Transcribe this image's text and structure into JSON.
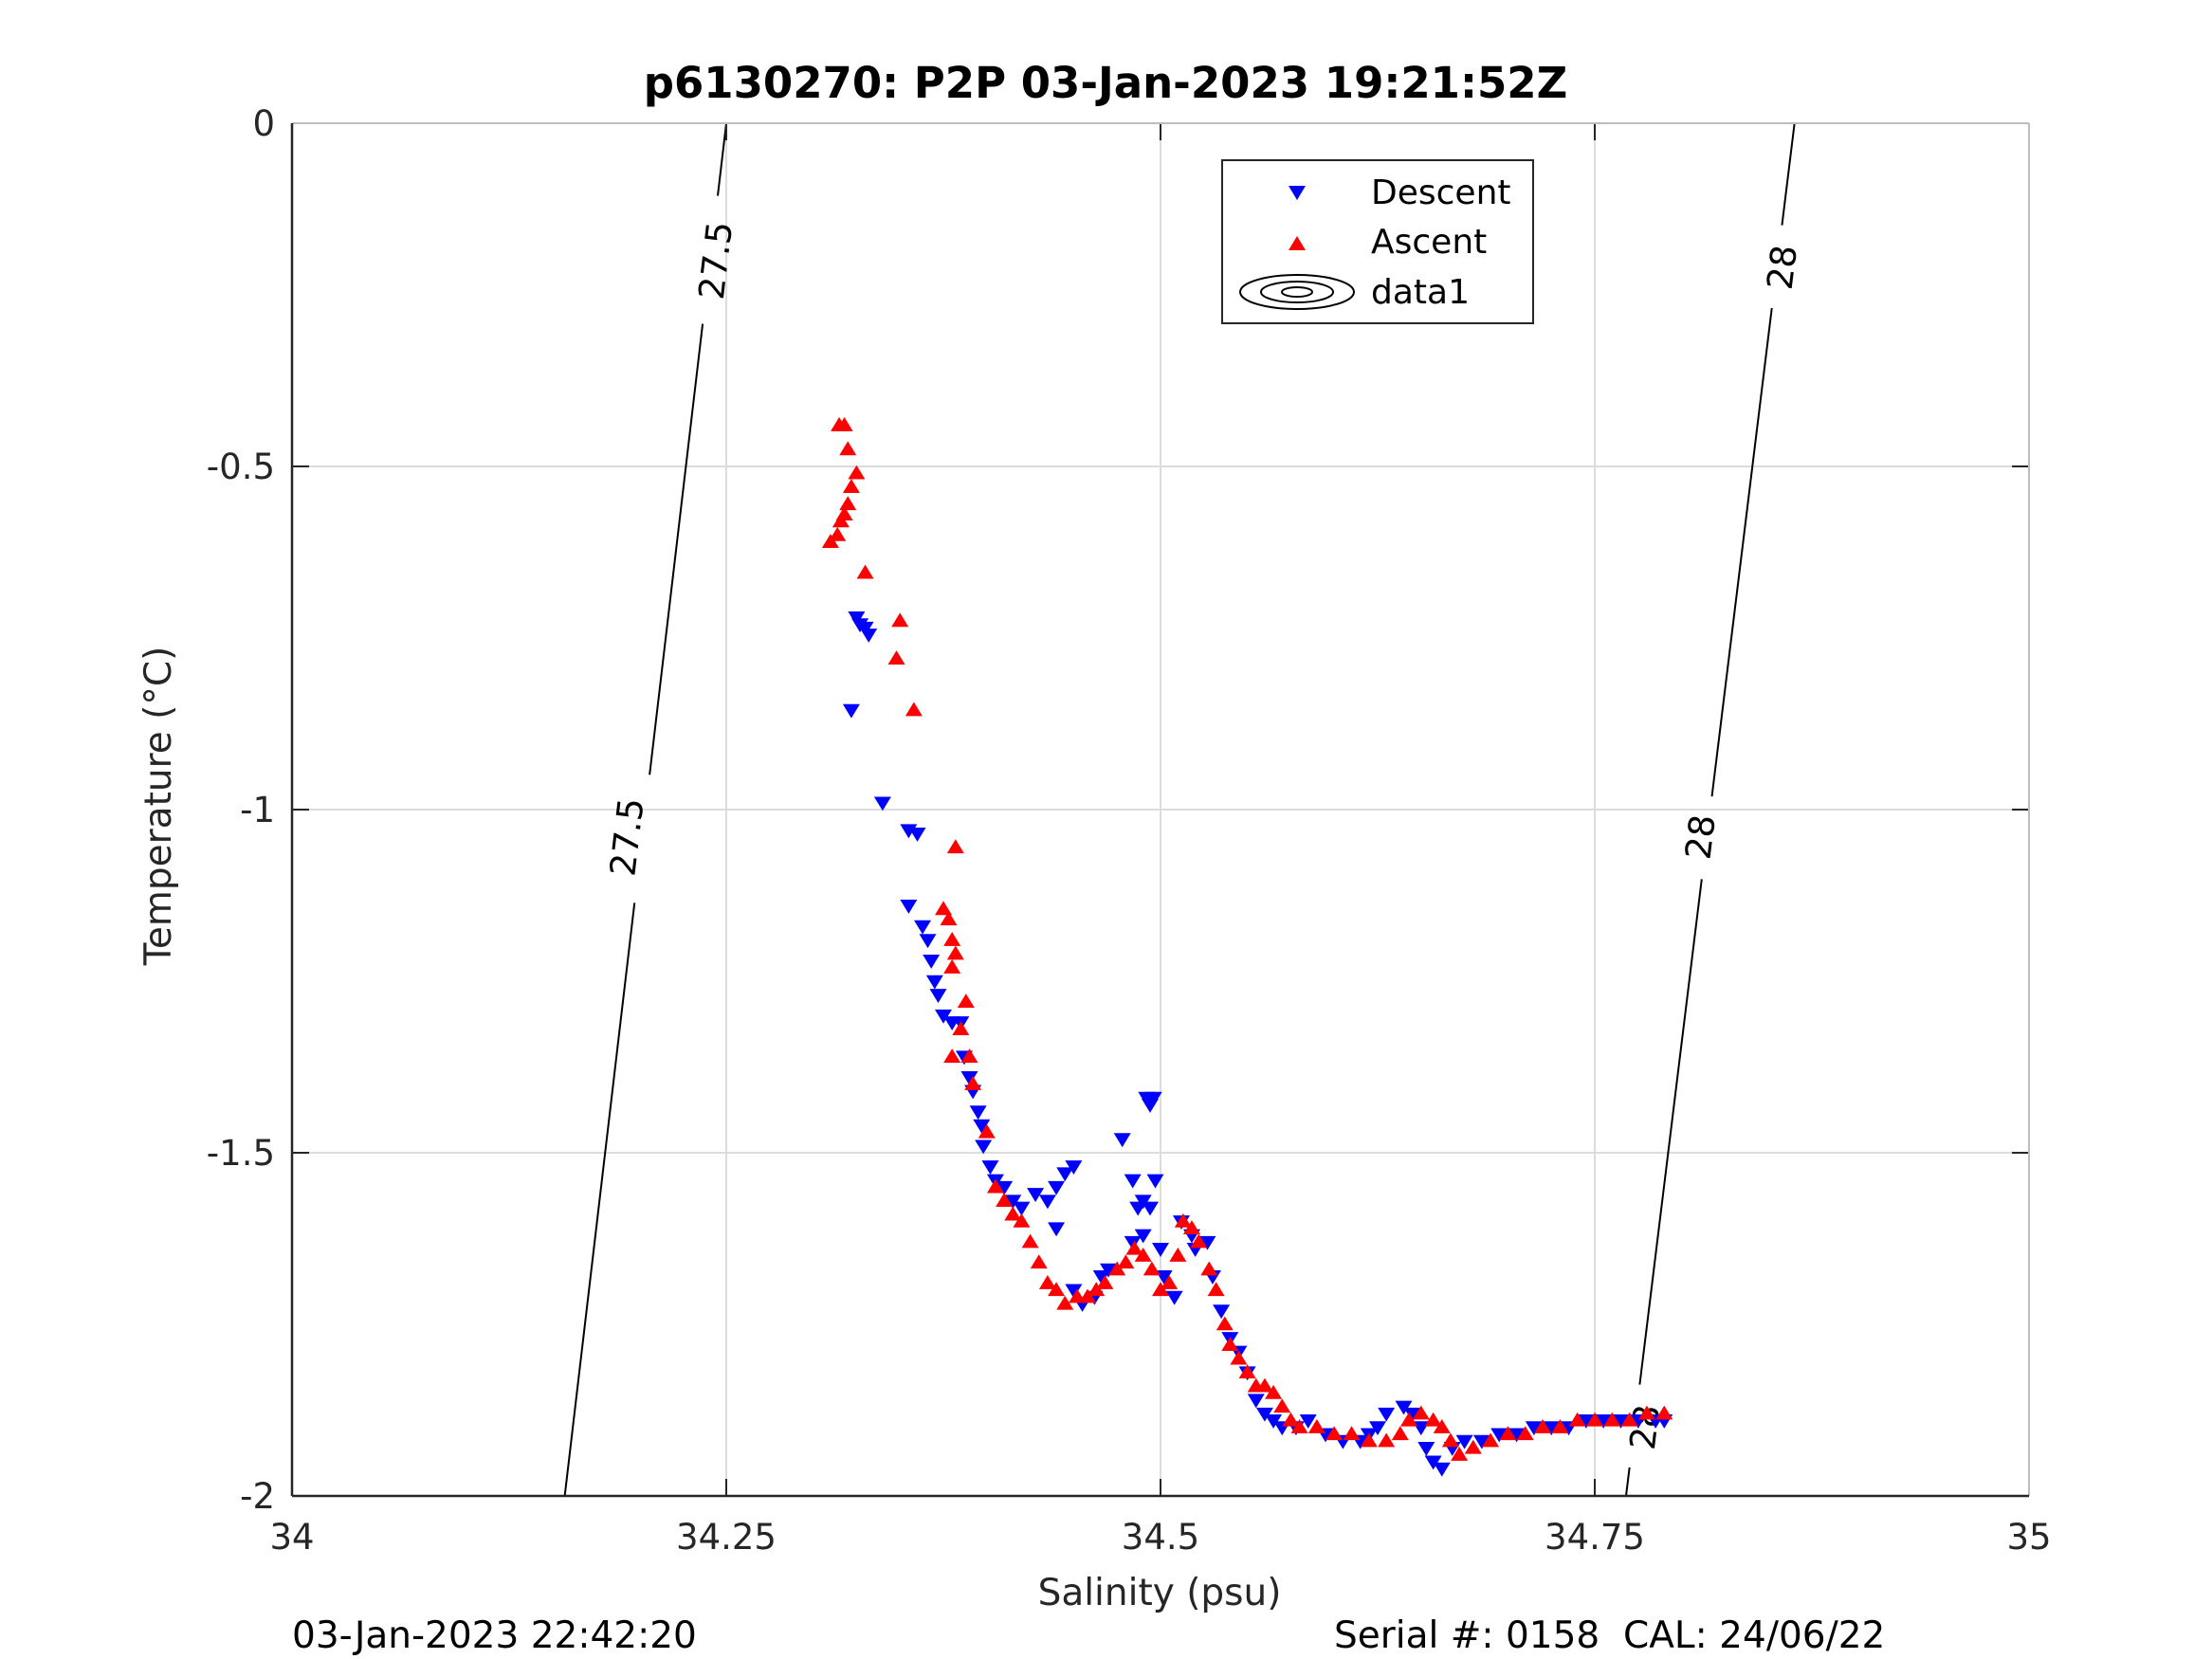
{
  "chart_data": {
    "type": "scatter",
    "title": "p6130270: P2P 03-Jan-2023 19:21:52Z",
    "xlabel": "Salinity (psu)",
    "ylabel": "Temperature (°C)",
    "xlim": [
      34,
      35
    ],
    "ylim": [
      -2,
      0
    ],
    "x_ticks": [
      "34",
      "34.25",
      "34.5",
      "34.75",
      "35"
    ],
    "y_ticks": [
      "0",
      "-0.5",
      "-1",
      "-1.5",
      "-2"
    ],
    "grid": true,
    "legend": {
      "placement": "top-center",
      "entries": [
        "Descent",
        "Ascent",
        "data1"
      ]
    },
    "series": [
      {
        "name": "Descent",
        "marker": "triangle-down",
        "color": "#0000ff",
        "points": [
          [
            34.325,
            -0.72
          ],
          [
            34.327,
            -0.73
          ],
          [
            34.33,
            -0.735
          ],
          [
            34.332,
            -0.745
          ],
          [
            34.322,
            -0.855
          ],
          [
            34.34,
            -0.99
          ],
          [
            34.355,
            -1.03
          ],
          [
            34.36,
            -1.035
          ],
          [
            34.355,
            -1.14
          ],
          [
            34.363,
            -1.17
          ],
          [
            34.366,
            -1.19
          ],
          [
            34.368,
            -1.22
          ],
          [
            34.37,
            -1.25
          ],
          [
            34.372,
            -1.27
          ],
          [
            34.375,
            -1.3
          ],
          [
            34.38,
            -1.31
          ],
          [
            34.385,
            -1.31
          ],
          [
            34.387,
            -1.36
          ],
          [
            34.39,
            -1.39
          ],
          [
            34.392,
            -1.41
          ],
          [
            34.395,
            -1.44
          ],
          [
            34.397,
            -1.46
          ],
          [
            34.398,
            -1.49
          ],
          [
            34.402,
            -1.52
          ],
          [
            34.405,
            -1.54
          ],
          [
            34.41,
            -1.55
          ],
          [
            34.415,
            -1.57
          ],
          [
            34.42,
            -1.58
          ],
          [
            34.428,
            -1.56
          ],
          [
            34.435,
            -1.57
          ],
          [
            34.44,
            -1.55
          ],
          [
            34.445,
            -1.53
          ],
          [
            34.45,
            -1.52
          ],
          [
            34.44,
            -1.61
          ],
          [
            34.45,
            -1.7
          ],
          [
            34.455,
            -1.72
          ],
          [
            34.462,
            -1.71
          ],
          [
            34.466,
            -1.68
          ],
          [
            34.47,
            -1.67
          ],
          [
            34.478,
            -1.48
          ],
          [
            34.484,
            -1.54
          ],
          [
            34.487,
            -1.58
          ],
          [
            34.49,
            -1.57
          ],
          [
            34.484,
            -1.63
          ],
          [
            34.49,
            -1.62
          ],
          [
            34.494,
            -1.58
          ],
          [
            34.497,
            -1.54
          ],
          [
            34.492,
            -1.42
          ],
          [
            34.494,
            -1.43
          ],
          [
            34.496,
            -1.42
          ],
          [
            34.5,
            -1.64
          ],
          [
            34.502,
            -1.68
          ],
          [
            34.508,
            -1.71
          ],
          [
            34.512,
            -1.6
          ],
          [
            34.518,
            -1.62
          ],
          [
            34.52,
            -1.64
          ],
          [
            34.527,
            -1.63
          ],
          [
            34.53,
            -1.68
          ],
          [
            34.535,
            -1.73
          ],
          [
            34.54,
            -1.77
          ],
          [
            34.545,
            -1.79
          ],
          [
            34.55,
            -1.82
          ],
          [
            34.555,
            -1.86
          ],
          [
            34.56,
            -1.88
          ],
          [
            34.565,
            -1.89
          ],
          [
            34.57,
            -1.9
          ],
          [
            34.578,
            -1.9
          ],
          [
            34.585,
            -1.89
          ],
          [
            34.595,
            -1.91
          ],
          [
            34.605,
            -1.92
          ],
          [
            34.615,
            -1.92
          ],
          [
            34.62,
            -1.91
          ],
          [
            34.625,
            -1.9
          ],
          [
            34.63,
            -1.88
          ],
          [
            34.64,
            -1.87
          ],
          [
            34.645,
            -1.88
          ],
          [
            34.65,
            -1.9
          ],
          [
            34.653,
            -1.93
          ],
          [
            34.657,
            -1.95
          ],
          [
            34.662,
            -1.96
          ],
          [
            34.668,
            -1.93
          ],
          [
            34.675,
            -1.92
          ],
          [
            34.685,
            -1.92
          ],
          [
            34.695,
            -1.91
          ],
          [
            34.705,
            -1.91
          ],
          [
            34.715,
            -1.9
          ],
          [
            34.725,
            -1.9
          ],
          [
            34.735,
            -1.9
          ],
          [
            34.745,
            -1.89
          ],
          [
            34.755,
            -1.89
          ],
          [
            34.765,
            -1.89
          ],
          [
            34.775,
            -1.89
          ],
          [
            34.785,
            -1.89
          ],
          [
            34.79,
            -1.89
          ]
        ]
      },
      {
        "name": "Ascent",
        "marker": "triangle-up",
        "color": "#ff0000",
        "points": [
          [
            34.315,
            -0.44
          ],
          [
            34.318,
            -0.44
          ],
          [
            34.32,
            -0.475
          ],
          [
            34.325,
            -0.51
          ],
          [
            34.322,
            -0.53
          ],
          [
            34.32,
            -0.555
          ],
          [
            34.318,
            -0.57
          ],
          [
            34.316,
            -0.58
          ],
          [
            34.314,
            -0.6
          ],
          [
            34.31,
            -0.61
          ],
          [
            34.33,
            -0.655
          ],
          [
            34.35,
            -0.725
          ],
          [
            34.348,
            -0.78
          ],
          [
            34.358,
            -0.855
          ],
          [
            34.382,
            -1.055
          ],
          [
            34.375,
            -1.145
          ],
          [
            34.378,
            -1.16
          ],
          [
            34.38,
            -1.19
          ],
          [
            34.382,
            -1.21
          ],
          [
            34.38,
            -1.23
          ],
          [
            34.388,
            -1.28
          ],
          [
            34.385,
            -1.32
          ],
          [
            34.38,
            -1.36
          ],
          [
            34.39,
            -1.36
          ],
          [
            34.392,
            -1.4
          ],
          [
            34.4,
            -1.47
          ],
          [
            34.405,
            -1.55
          ],
          [
            34.41,
            -1.57
          ],
          [
            34.415,
            -1.59
          ],
          [
            34.42,
            -1.6
          ],
          [
            34.425,
            -1.63
          ],
          [
            34.43,
            -1.66
          ],
          [
            34.435,
            -1.69
          ],
          [
            34.44,
            -1.7
          ],
          [
            34.445,
            -1.72
          ],
          [
            34.452,
            -1.71
          ],
          [
            34.458,
            -1.71
          ],
          [
            34.463,
            -1.7
          ],
          [
            34.468,
            -1.69
          ],
          [
            34.475,
            -1.67
          ],
          [
            34.48,
            -1.66
          ],
          [
            34.485,
            -1.64
          ],
          [
            34.49,
            -1.65
          ],
          [
            34.495,
            -1.67
          ],
          [
            34.5,
            -1.7
          ],
          [
            34.505,
            -1.69
          ],
          [
            34.51,
            -1.65
          ],
          [
            34.513,
            -1.6
          ],
          [
            34.518,
            -1.61
          ],
          [
            34.522,
            -1.63
          ],
          [
            34.528,
            -1.67
          ],
          [
            34.532,
            -1.7
          ],
          [
            34.537,
            -1.75
          ],
          [
            34.54,
            -1.78
          ],
          [
            34.545,
            -1.8
          ],
          [
            34.55,
            -1.82
          ],
          [
            34.555,
            -1.84
          ],
          [
            34.56,
            -1.84
          ],
          [
            34.565,
            -1.85
          ],
          [
            34.57,
            -1.87
          ],
          [
            34.575,
            -1.89
          ],
          [
            34.58,
            -1.9
          ],
          [
            34.59,
            -1.9
          ],
          [
            34.6,
            -1.91
          ],
          [
            34.61,
            -1.91
          ],
          [
            34.62,
            -1.92
          ],
          [
            34.63,
            -1.92
          ],
          [
            34.638,
            -1.91
          ],
          [
            34.643,
            -1.89
          ],
          [
            34.65,
            -1.88
          ],
          [
            34.657,
            -1.89
          ],
          [
            34.662,
            -1.9
          ],
          [
            34.667,
            -1.92
          ],
          [
            34.672,
            -1.94
          ],
          [
            34.68,
            -1.93
          ],
          [
            34.69,
            -1.92
          ],
          [
            34.7,
            -1.91
          ],
          [
            34.71,
            -1.91
          ],
          [
            34.72,
            -1.9
          ],
          [
            34.73,
            -1.9
          ],
          [
            34.74,
            -1.89
          ],
          [
            34.75,
            -1.89
          ],
          [
            34.76,
            -1.89
          ],
          [
            34.77,
            -1.89
          ],
          [
            34.78,
            -1.88
          ],
          [
            34.79,
            -1.88
          ]
        ]
      }
    ],
    "contours": [
      {
        "level_label": "27.5",
        "color": "#000000",
        "line": [
          [
            34.157,
            -2
          ],
          [
            34.25,
            0
          ]
        ],
        "label_positions": [
          [
            34.244,
            -0.2
          ],
          [
            34.193,
            -1.04
          ]
        ]
      },
      {
        "level_label": "28",
        "color": "#000000",
        "line": [
          [
            34.768,
            -2
          ],
          [
            34.865,
            0
          ]
        ],
        "label_positions": [
          [
            34.858,
            -0.21
          ],
          [
            34.811,
            -1.04
          ],
          [
            34.779,
            -1.9
          ]
        ]
      }
    ]
  },
  "footer": {
    "left": "03-Jan-2023 22:42:20",
    "right": "Serial #: 0158  CAL: 24/06/22"
  }
}
